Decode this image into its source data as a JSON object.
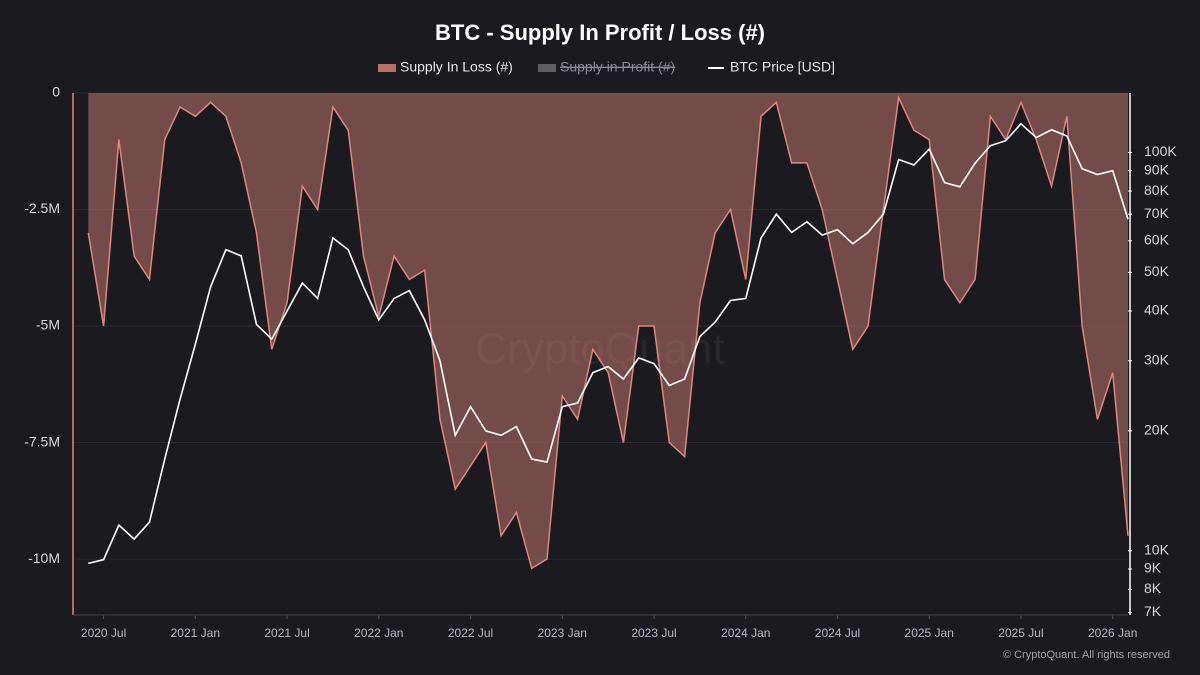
{
  "chart_data": {
    "type": "area-line",
    "title": "BTC - Supply In Profit / Loss (#)",
    "watermark": "CryptoQuant",
    "footer": "© CryptoQuant. All rights reserved",
    "x": [
      "2020-06",
      "2020-07",
      "2020-08",
      "2020-09",
      "2020-10",
      "2020-11",
      "2020-12",
      "2021-01",
      "2021-02",
      "2021-03",
      "2021-04",
      "2021-05",
      "2021-06",
      "2021-07",
      "2021-08",
      "2021-09",
      "2021-10",
      "2021-11",
      "2021-12",
      "2022-01",
      "2022-02",
      "2022-03",
      "2022-04",
      "2022-05",
      "2022-06",
      "2022-07",
      "2022-08",
      "2022-09",
      "2022-10",
      "2022-11",
      "2022-12",
      "2023-01",
      "2023-02",
      "2023-03",
      "2023-04",
      "2023-05",
      "2023-06",
      "2023-07",
      "2023-08",
      "2023-09",
      "2023-10",
      "2023-11",
      "2023-12",
      "2024-01",
      "2024-02",
      "2024-03",
      "2024-04",
      "2024-05",
      "2024-06",
      "2024-07",
      "2024-08",
      "2024-09",
      "2024-10",
      "2024-11",
      "2024-12",
      "2025-01",
      "2025-02",
      "2025-03",
      "2025-04",
      "2025-05",
      "2025-06",
      "2025-07",
      "2025-08",
      "2025-09",
      "2025-10",
      "2025-11",
      "2025-12",
      "2026-01",
      "2026-02"
    ],
    "xlim": [
      "2020-05",
      "2026-02"
    ],
    "xticks": [
      {
        "value": "2020-07",
        "label": "2020 Jul"
      },
      {
        "value": "2021-01",
        "label": "2021 Jan"
      },
      {
        "value": "2021-07",
        "label": "2021 Jul"
      },
      {
        "value": "2022-01",
        "label": "2022 Jan"
      },
      {
        "value": "2022-07",
        "label": "2022 Jul"
      },
      {
        "value": "2023-01",
        "label": "2023 Jan"
      },
      {
        "value": "2023-07",
        "label": "2023 Jul"
      },
      {
        "value": "2024-01",
        "label": "2024 Jan"
      },
      {
        "value": "2024-07",
        "label": "2024 Jul"
      },
      {
        "value": "2025-01",
        "label": "2025 Jan"
      },
      {
        "value": "2025-07",
        "label": "2025 Jul"
      },
      {
        "value": "2026-01",
        "label": "2026 Jan"
      }
    ],
    "ylim": [
      -11200000,
      0
    ],
    "yticks": [
      0,
      {
        "value": -2500000,
        "label": "-2.5M"
      },
      {
        "value": -5000000,
        "label": "-5M"
      },
      {
        "value": -7500000,
        "label": "-7.5M"
      },
      {
        "value": -10000000,
        "label": "-10M"
      }
    ],
    "y2lim": [
      6900,
      141000
    ],
    "y2scale": "log",
    "y2ticks": [
      {
        "value": 7000,
        "label": "7K"
      },
      {
        "value": 8000,
        "label": "8K"
      },
      {
        "value": 9000,
        "label": "9K"
      },
      {
        "value": 10000,
        "label": "10K"
      },
      {
        "value": 20000,
        "label": "20K"
      },
      {
        "value": 30000,
        "label": "30K"
      },
      {
        "value": 40000,
        "label": "40K"
      },
      {
        "value": 50000,
        "label": "50K"
      },
      {
        "value": 60000,
        "label": "60K"
      },
      {
        "value": 70000,
        "label": "70K"
      },
      {
        "value": 80000,
        "label": "80K"
      },
      {
        "value": 90000,
        "label": "90K"
      },
      {
        "value": 100000,
        "label": "100K"
      }
    ],
    "grid": true,
    "series": [
      {
        "name": "Supply In Loss (#)",
        "color": "#e0877d",
        "kind": "area",
        "values": [
          -3000000,
          -5000000,
          -1000000,
          -3500000,
          -4000000,
          -1000000,
          -300000,
          -500000,
          -200000,
          -500000,
          -1500000,
          -3000000,
          -5500000,
          -4500000,
          -2000000,
          -2500000,
          -300000,
          -800000,
          -3500000,
          -4800000,
          -3500000,
          -4000000,
          -3800000,
          -7000000,
          -8500000,
          -8000000,
          -7500000,
          -9500000,
          -9000000,
          -10200000,
          -10000000,
          -6500000,
          -7000000,
          -5500000,
          -6000000,
          -7500000,
          -5000000,
          -5000000,
          -7500000,
          -7800000,
          -4500000,
          -3000000,
          -2500000,
          -4000000,
          -500000,
          -200000,
          -1500000,
          -1500000,
          -2500000,
          -4000000,
          -5500000,
          -5000000,
          -2500000,
          -100000,
          -800000,
          -1000000,
          -4000000,
          -4500000,
          -4000000,
          -500000,
          -1000000,
          -200000,
          -1000000,
          -2000000,
          -500000,
          -5000000,
          -7000000,
          -6000000,
          -9500000
        ]
      },
      {
        "name": "Supply in Profit (#)",
        "color": "#8a8a90",
        "kind": "area",
        "hidden": true
      },
      {
        "name": "BTC Price [USD]",
        "color": "#ffffff",
        "kind": "line",
        "axis": "y2",
        "values": [
          9300,
          9500,
          11600,
          10700,
          11800,
          17000,
          24000,
          33000,
          46000,
          57000,
          55000,
          37000,
          34000,
          40000,
          47000,
          43000,
          61000,
          57000,
          46000,
          38000,
          43000,
          45000,
          38000,
          30000,
          19500,
          23000,
          20000,
          19500,
          20500,
          17000,
          16700,
          23000,
          23500,
          28000,
          29000,
          27000,
          30500,
          29500,
          26000,
          27000,
          34500,
          37500,
          42500,
          43000,
          61000,
          70000,
          63000,
          67000,
          62000,
          64000,
          59000,
          63000,
          70000,
          96000,
          93000,
          102000,
          84000,
          82000,
          94000,
          104000,
          107000,
          118000,
          109000,
          114000,
          110000,
          91000,
          88000,
          90000,
          68000
        ]
      }
    ]
  }
}
